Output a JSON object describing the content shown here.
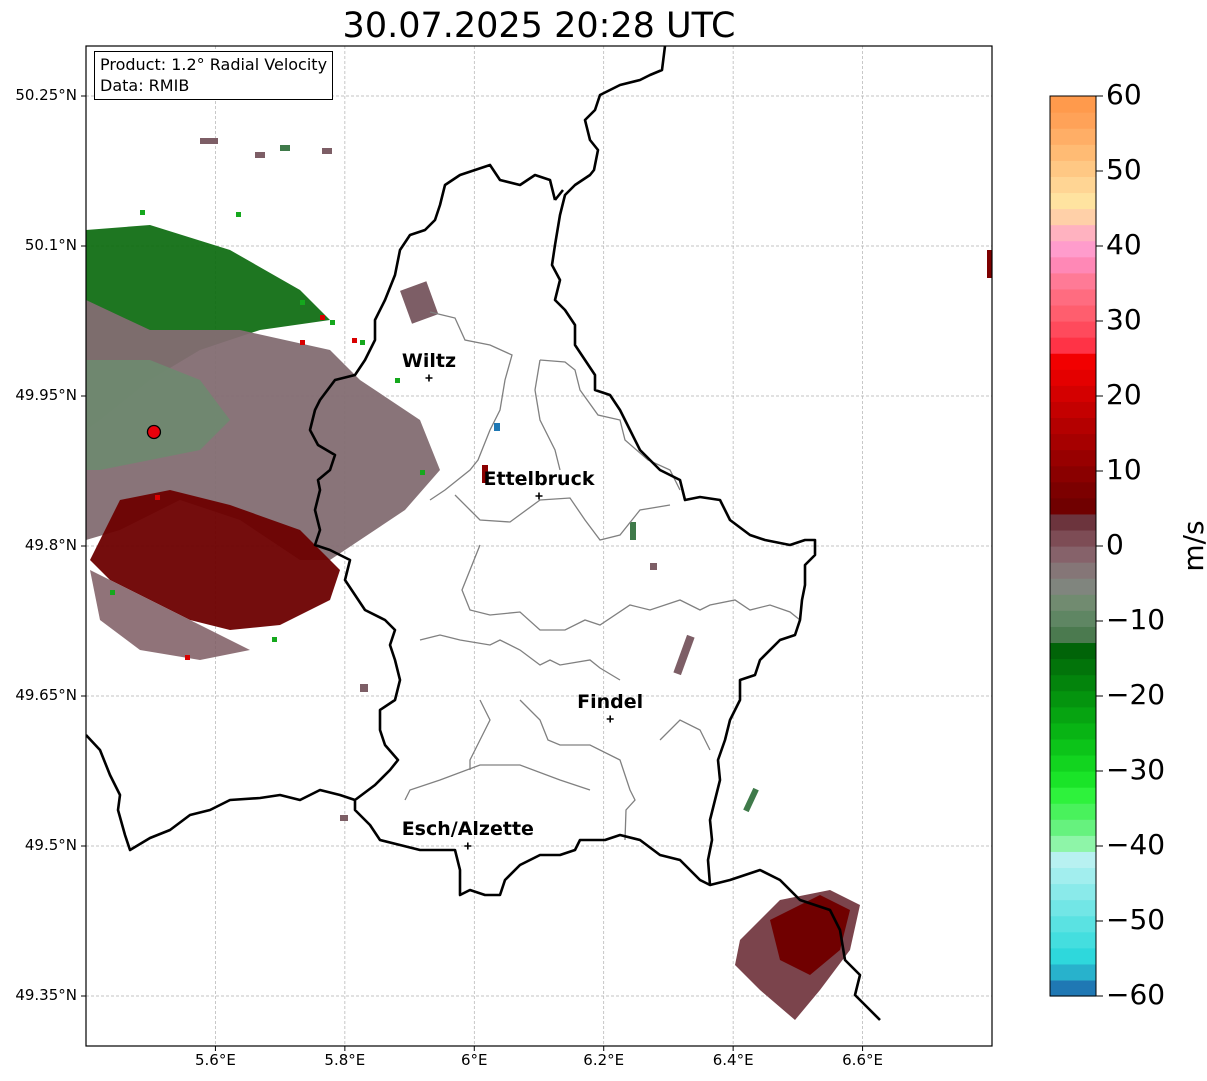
{
  "title": "30.07.2025 20:28 UTC",
  "info": {
    "product": "Product: 1.2° Radial Velocity",
    "data": "Data: RMIB"
  },
  "map": {
    "extent": {
      "lon": [
        5.4,
        6.8
      ],
      "lat": [
        49.3,
        50.3
      ]
    },
    "lat_ticks": [
      {
        "value": 50.25,
        "label": "50.25°N"
      },
      {
        "value": 50.1,
        "label": "50.1°N"
      },
      {
        "value": 49.95,
        "label": "49.95°N"
      },
      {
        "value": 49.8,
        "label": "49.8°N"
      },
      {
        "value": 49.65,
        "label": "49.65°N"
      },
      {
        "value": 49.5,
        "label": "49.5°N"
      },
      {
        "value": 49.35,
        "label": "49.35°N"
      }
    ],
    "lon_ticks": [
      {
        "value": 5.6,
        "label": "5.6°E"
      },
      {
        "value": 5.8,
        "label": "5.8°E"
      },
      {
        "value": 6.0,
        "label": "6°E"
      },
      {
        "value": 6.2,
        "label": "6.2°E"
      },
      {
        "value": 6.4,
        "label": "6.4°E"
      },
      {
        "value": 6.6,
        "label": "6.6°E"
      }
    ],
    "places": [
      {
        "name": "Wiltz",
        "lon": 5.93,
        "lat": 49.968
      },
      {
        "name": "Ettelbruck",
        "lon": 6.1,
        "lat": 49.85
      },
      {
        "name": "Findel",
        "lon": 6.21,
        "lat": 49.627
      },
      {
        "name": "Esch/Alzette",
        "lon": 5.99,
        "lat": 49.5
      }
    ],
    "radar_site": {
      "lon": 5.505,
      "lat": 49.914,
      "color": "#e8000b"
    },
    "grid": true
  },
  "colorbar": {
    "label": "m/s",
    "min": -60,
    "max": 60,
    "ticks": [
      {
        "value": 60,
        "label": "60"
      },
      {
        "value": 50,
        "label": "50"
      },
      {
        "value": 40,
        "label": "40"
      },
      {
        "value": 30,
        "label": "30"
      },
      {
        "value": 20,
        "label": "20"
      },
      {
        "value": 10,
        "label": "10"
      },
      {
        "value": 0,
        "label": "0"
      },
      {
        "value": -10,
        "label": "−10"
      },
      {
        "value": -20,
        "label": "−20"
      },
      {
        "value": -30,
        "label": "−30"
      },
      {
        "value": -40,
        "label": "−40"
      },
      {
        "value": -50,
        "label": "−50"
      },
      {
        "value": -60,
        "label": "−60"
      }
    ],
    "colors": [
      "#1f78b4",
      "#28b2cc",
      "#2ed8dc",
      "#44dedf",
      "#5ae2e2",
      "#72e6e6",
      "#8aeaea",
      "#a2eeee",
      "#b8f1f1",
      "#8ef5a8",
      "#66f27e",
      "#49f25c",
      "#2ef23c",
      "#1ae428",
      "#12d41f",
      "#0cc419",
      "#08b414",
      "#06a411",
      "#04940e",
      "#03840c",
      "#02740a",
      "#016408",
      "#4b7a4f",
      "#5f8663",
      "#718b70",
      "#80857e",
      "#857677",
      "#86626a",
      "#7d4c55",
      "#6c343d",
      "#700000",
      "#7c0000",
      "#8a0000",
      "#980000",
      "#a60000",
      "#b40000",
      "#c40000",
      "#d40000",
      "#e40000",
      "#f20000",
      "#ff3346",
      "#ff4a5c",
      "#ff5e6e",
      "#ff6c80",
      "#ff7a96",
      "#ff88b6",
      "#ff9ccc",
      "#ffb2c0",
      "#ffd0a8",
      "#ffe3a0",
      "#ffd594",
      "#ffc884",
      "#ffbb74",
      "#ffae66",
      "#ffa258",
      "#ff9a4c"
    ]
  }
}
